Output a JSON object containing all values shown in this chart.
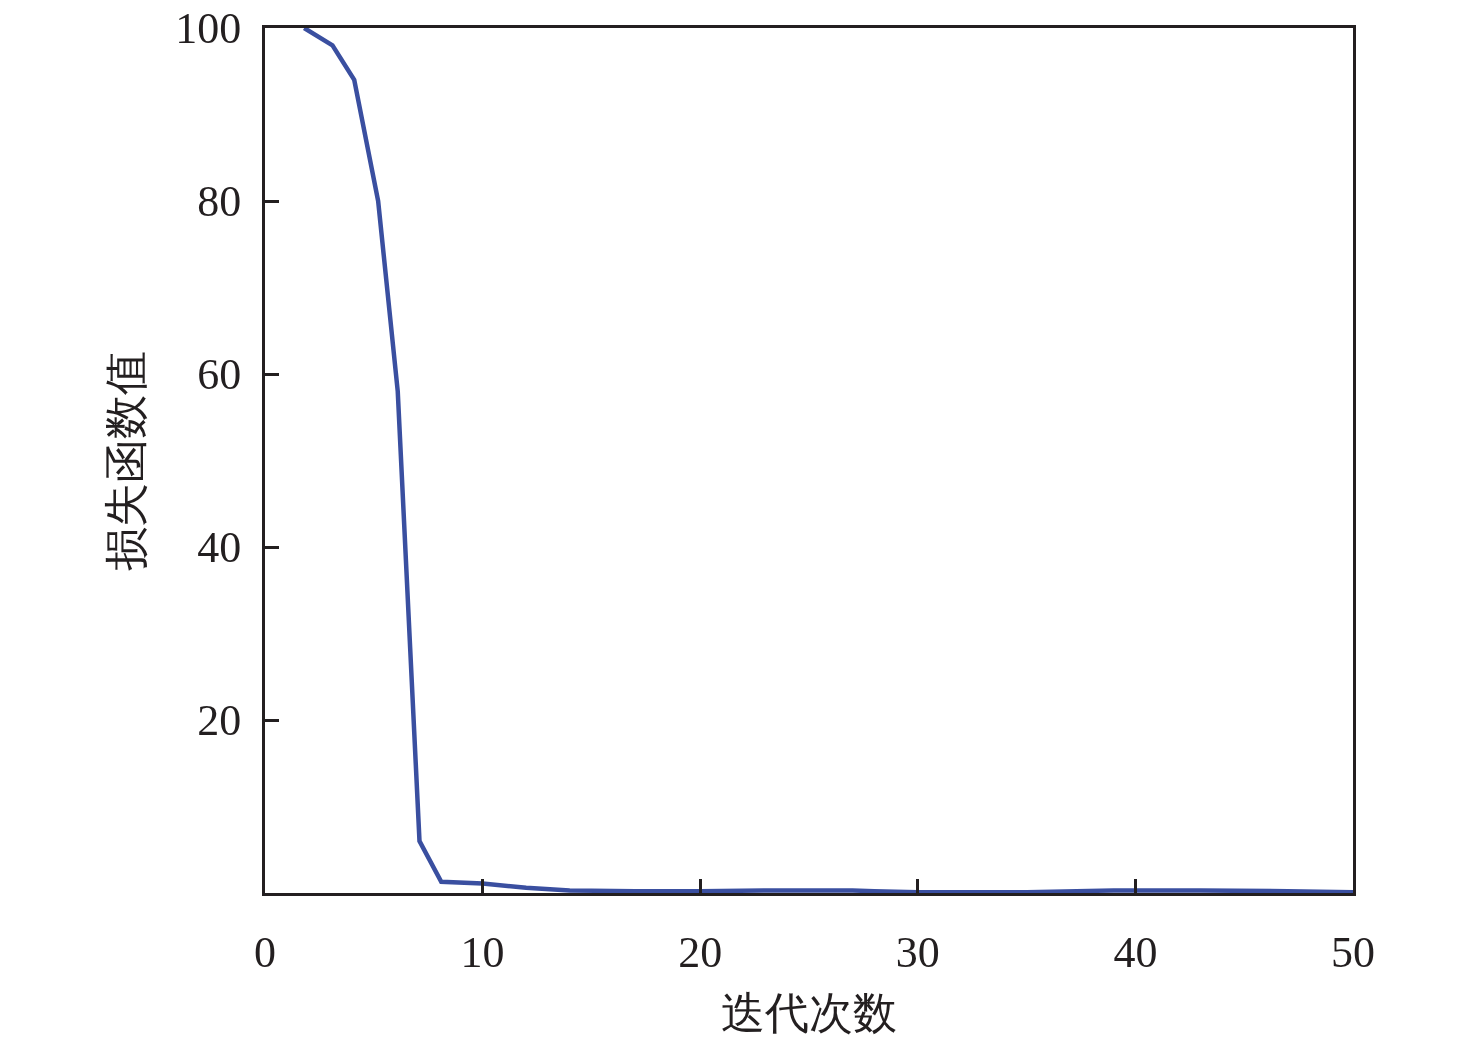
{
  "chart_data": {
    "type": "line",
    "xlabel": "迭代次数",
    "ylabel": "损失函数值",
    "x": [
      1.8,
      3.1,
      4.1,
      5.2,
      6.1,
      7.1,
      8.1,
      10,
      12,
      14,
      17,
      20,
      23,
      27,
      28,
      30,
      35,
      39,
      43,
      47,
      50
    ],
    "series": [
      {
        "color": "#3a4fa0",
        "values": [
          100,
          98,
          94,
          80,
          58,
          6,
          1.3,
          1.1,
          0.6,
          0.3,
          0.2,
          0.2,
          0.3,
          0.3,
          0.2,
          0.1,
          0.1,
          0.3,
          0.3,
          0.2,
          0.1
        ]
      }
    ],
    "xlim": [
      0,
      50
    ],
    "ylim": [
      0,
      100
    ],
    "xticks": [
      0,
      10,
      20,
      30,
      40,
      50
    ],
    "yticks": [
      20,
      40,
      60,
      80,
      100
    ],
    "grid": false,
    "line_style": "solid"
  }
}
